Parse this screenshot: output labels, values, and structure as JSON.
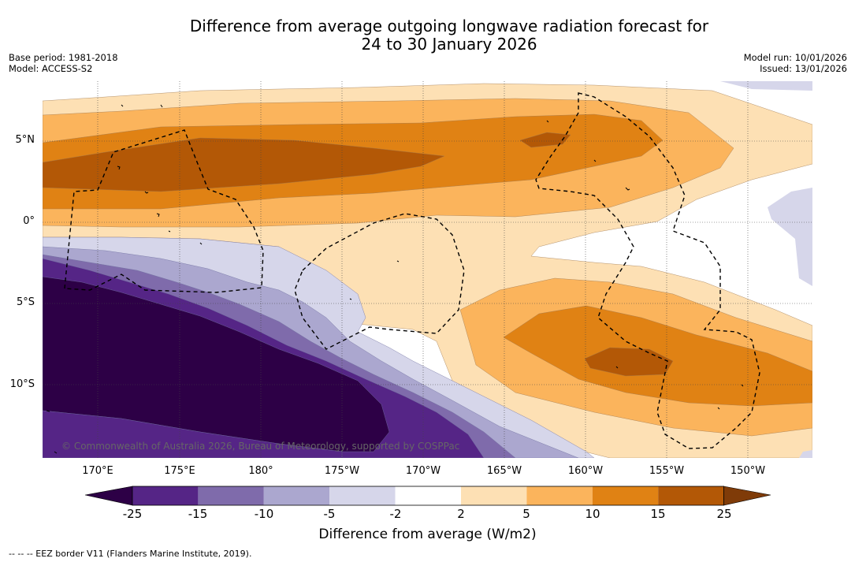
{
  "title": {
    "line1": "Difference from average outgoing longwave radiation forecast for",
    "line2": "24 to 30 January 2026"
  },
  "meta_left": {
    "base_period": "Base period: 1981-2018",
    "model": "Model: ACCESS-S2"
  },
  "meta_right": {
    "model_run": "Model run: 10/01/2026",
    "issued": "Issued: 13/01/2026"
  },
  "map": {
    "lat_labels": [
      "5°N",
      "0°",
      "5°S",
      "10°S"
    ],
    "lon_labels": [
      "170°E",
      "175°E",
      "180°",
      "175°W",
      "170°W",
      "165°W",
      "160°W",
      "155°W",
      "150°W"
    ],
    "credit": "© Commonwealth of Australia 2026, Bureau of Meteorology, supported by COSPPac"
  },
  "colorbar": {
    "ticks": [
      "-25",
      "-15",
      "-10",
      "-5",
      "-2",
      "2",
      "5",
      "10",
      "15",
      "25"
    ],
    "colors": {
      "lt_-25": "#2d0046",
      "-25_-15": "#552586",
      "-15_-10": "#7f6bab",
      "-10_-5": "#aba7cf",
      "-5_-2": "#d6d6ea",
      "-2_2": "#ffffff",
      "2_5": "#fde0b4",
      "5_10": "#fbb45c",
      "10_15": "#e08214",
      "15_25": "#b35806",
      "gt_25": "#7f3b08"
    },
    "label": "Difference from average (W/m2)"
  },
  "legend_note": "--  --  -- EEZ border V11 (Flanders Marine Institute, 2019)."
}
